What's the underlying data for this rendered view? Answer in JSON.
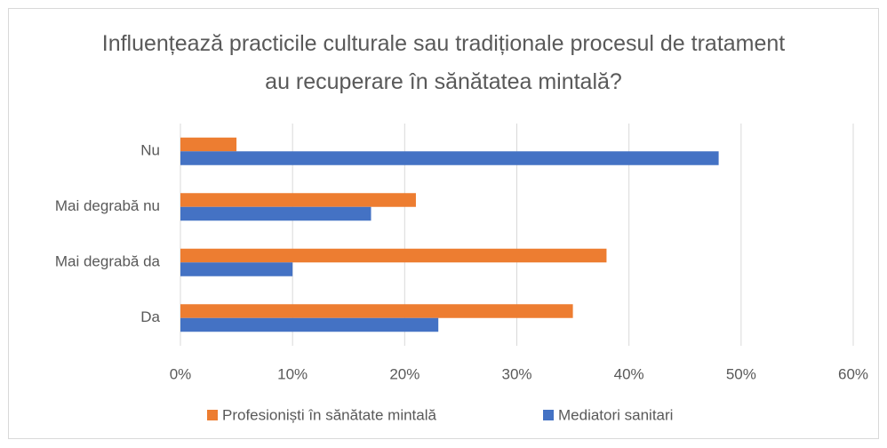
{
  "chart_data": {
    "type": "bar",
    "orientation": "horizontal",
    "title": "Influențează practicile culturale sau tradiționale procesul de tratament au recuperare în sănătatea mintală?",
    "categories": [
      "Nu",
      "Mai degrabă nu",
      "Mai degrabă da",
      "Da"
    ],
    "series": [
      {
        "name": "Profesioniști în sănătate mintală",
        "color": "#ed7d31",
        "values": [
          5,
          21,
          38,
          35
        ]
      },
      {
        "name": "Mediatori sanitari",
        "color": "#4472c4",
        "values": [
          48,
          17,
          10,
          23
        ]
      }
    ],
    "xlim": [
      0,
      60
    ],
    "xticks": [
      {
        "value": 0,
        "label": "0%"
      },
      {
        "value": 10,
        "label": "10%"
      },
      {
        "value": 20,
        "label": "20%"
      },
      {
        "value": 30,
        "label": "30%"
      },
      {
        "value": 40,
        "label": "40%"
      },
      {
        "value": 50,
        "label": "50%"
      },
      {
        "value": 60,
        "label": "60%"
      }
    ],
    "grid": true,
    "legend": "bottom"
  }
}
